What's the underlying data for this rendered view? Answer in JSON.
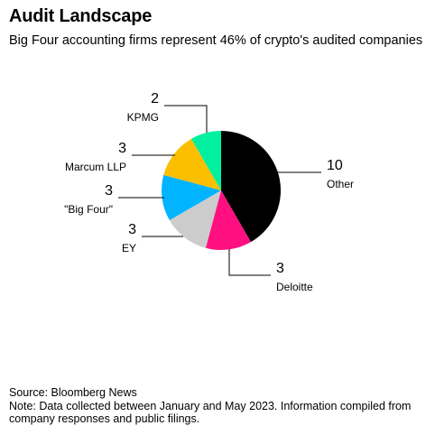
{
  "header": {
    "title": "Audit Landscape",
    "subtitle": "Big Four accounting firms represent 46% of crypto's audited companies"
  },
  "chart_data": {
    "type": "pie",
    "title": "Audit Landscape",
    "subtitle": "Big Four accounting firms represent 46% of crypto's audited companies",
    "start_angle_deg": 0,
    "direction": "clockwise",
    "slices": [
      {
        "label": "Other",
        "value": 10,
        "color": "#000000"
      },
      {
        "label": "Deloitte",
        "value": 3,
        "color": "#ff0f80"
      },
      {
        "label": "EY",
        "value": 3,
        "color": "#cccccc"
      },
      {
        "label": "\"Big Four\"",
        "value": 3,
        "color": "#00b4ff"
      },
      {
        "label": "Marcum LLP",
        "value": 3,
        "color": "#fcbf00"
      },
      {
        "label": "KPMG",
        "value": 2,
        "color": "#00f0a0"
      }
    ]
  },
  "footer": {
    "source": "Source: Bloomberg News",
    "note": "Note: Data collected between January and May 2023. Information compiled from company responses and public filings."
  }
}
